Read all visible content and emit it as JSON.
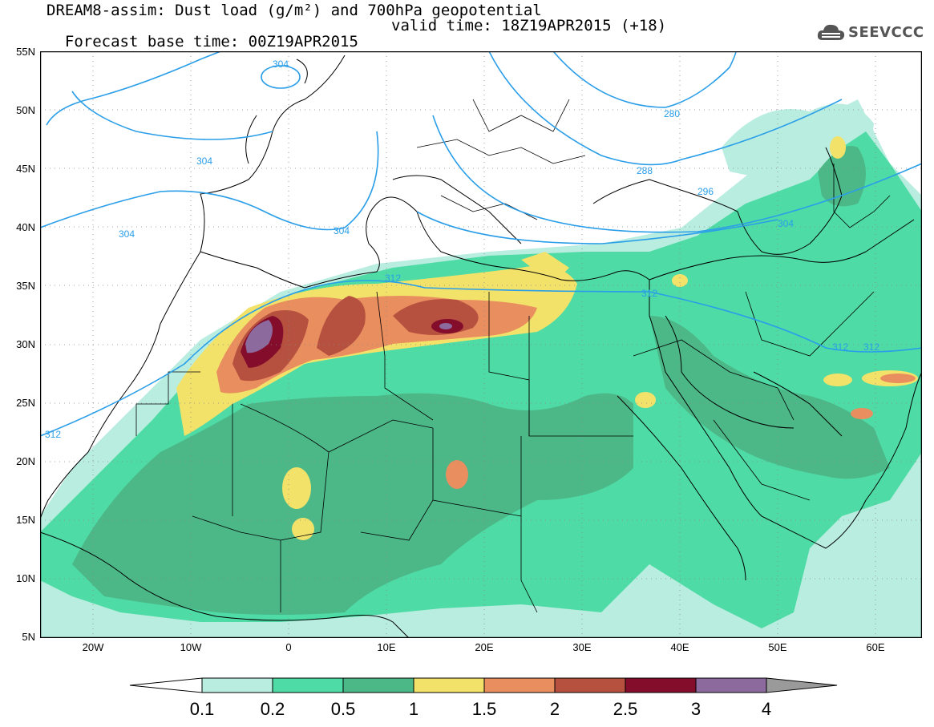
{
  "header": {
    "title_line1": "DREAM8-assim: Dust load (g/m²) and 700hPa geopotential",
    "base_time": "Forecast base time: 00Z19APR2015",
    "valid_time": "valid time: 18Z19APR2015 (+18)",
    "logo_text": "SEEVCCC",
    "logo_icon": "cloud-logo-icon"
  },
  "axes": {
    "lat_labels": [
      "55N",
      "50N",
      "45N",
      "40N",
      "35N",
      "30N",
      "25N",
      "20N",
      "15N",
      "10N",
      "5N"
    ],
    "lon_labels": [
      "20W",
      "10W",
      "0",
      "10E",
      "20E",
      "30E",
      "40E",
      "50E",
      "60E"
    ]
  },
  "legend": {
    "levels": [
      "0.1",
      "0.2",
      "0.5",
      "1",
      "1.5",
      "2",
      "2.5",
      "3",
      "4"
    ],
    "colors": [
      "#ffffff",
      "#b9ede0",
      "#4fdba6",
      "#4cb888",
      "#f2e26a",
      "#e98e5f",
      "#b65140",
      "#840d2b",
      "#8d6a9e",
      "#9a9a9a"
    ]
  },
  "contour_labels": [
    "304",
    "304",
    "304",
    "280",
    "288",
    "296",
    "304",
    "312",
    "312",
    "312",
    "312",
    "312",
    "304"
  ],
  "colors": {
    "contour": "#2a9ee8",
    "border": "#000000"
  }
}
